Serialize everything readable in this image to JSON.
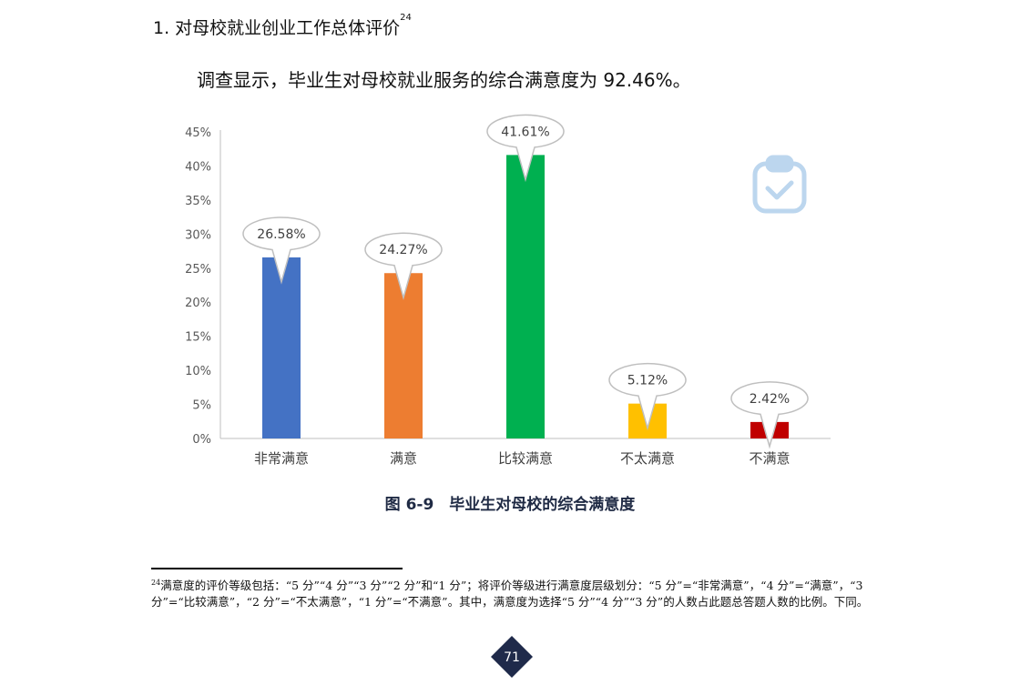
{
  "heading": {
    "text": "1. 对母校就业创业工作总体评价",
    "footnote_ref": "24"
  },
  "paragraph": "调查显示，毕业生对母校就业服务的综合满意度为 92.46%。",
  "decor_icon": "clipboard-check-icon",
  "chart_data": {
    "type": "bar",
    "title": "",
    "categories": [
      "非常满意",
      "满意",
      "比较满意",
      "不太满意",
      "不满意"
    ],
    "values": [
      26.58,
      24.27,
      41.61,
      5.12,
      2.42
    ],
    "value_labels": [
      "26.58%",
      "24.27%",
      "41.61%",
      "5.12%",
      "2.42%"
    ],
    "colors": [
      "#4472C4",
      "#ED7D31",
      "#00B050",
      "#FFC000",
      "#C00000"
    ],
    "yticks": [
      "0%",
      "5%",
      "10%",
      "15%",
      "20%",
      "25%",
      "30%",
      "35%",
      "40%",
      "45%"
    ],
    "ylim": [
      0,
      45
    ],
    "xlabel": "",
    "ylabel": "",
    "grid": false,
    "legend": "none"
  },
  "caption": "图 6-9　毕业生对母校的综合满意度",
  "footnote": {
    "ref": "24",
    "text": "满意度的评价等级包括：“5 分”“4 分”“3 分”“2 分”和“1 分”；将评价等级进行满意度层级划分：“5 分”=“非常满意”，“4 分”=“满意”，“3 分”=“比较满意”，“2 分”=“不太满意”，“1 分”=“不满意”。其中，满意度为选择“5 分”“4 分”“3 分”的人数占此题总答题人数的比例。下同。"
  },
  "page_number": "71"
}
